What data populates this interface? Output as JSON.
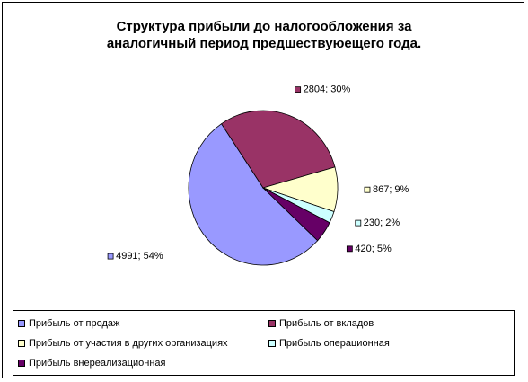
{
  "title_lines": [
    "Структура прибыли до налогообложения за",
    "аналогичный период предшествуюещего года."
  ],
  "chart_data": {
    "type": "pie",
    "title": "Структура прибыли до налогообложения за аналогичный период предшествуюещего года.",
    "slices": [
      {
        "name": "Прибыль от продаж",
        "value": 4991,
        "label": "4991; 54%",
        "color": "#9999ff"
      },
      {
        "name": "Прибыль от вкладов",
        "value": 2804,
        "label": "2804; 30%",
        "color": "#993366"
      },
      {
        "name": "Прибыль от участия в других организациях",
        "value": 867,
        "label": "867; 9%",
        "color": "#ffffcc"
      },
      {
        "name": "Прибыль операционная",
        "value": 230,
        "label": "230; 2%",
        "color": "#ccffff"
      },
      {
        "name": "Прибыль внереализационная",
        "value": 420,
        "label": "420; 5%",
        "color": "#660066"
      }
    ],
    "legend_position": "bottom"
  }
}
